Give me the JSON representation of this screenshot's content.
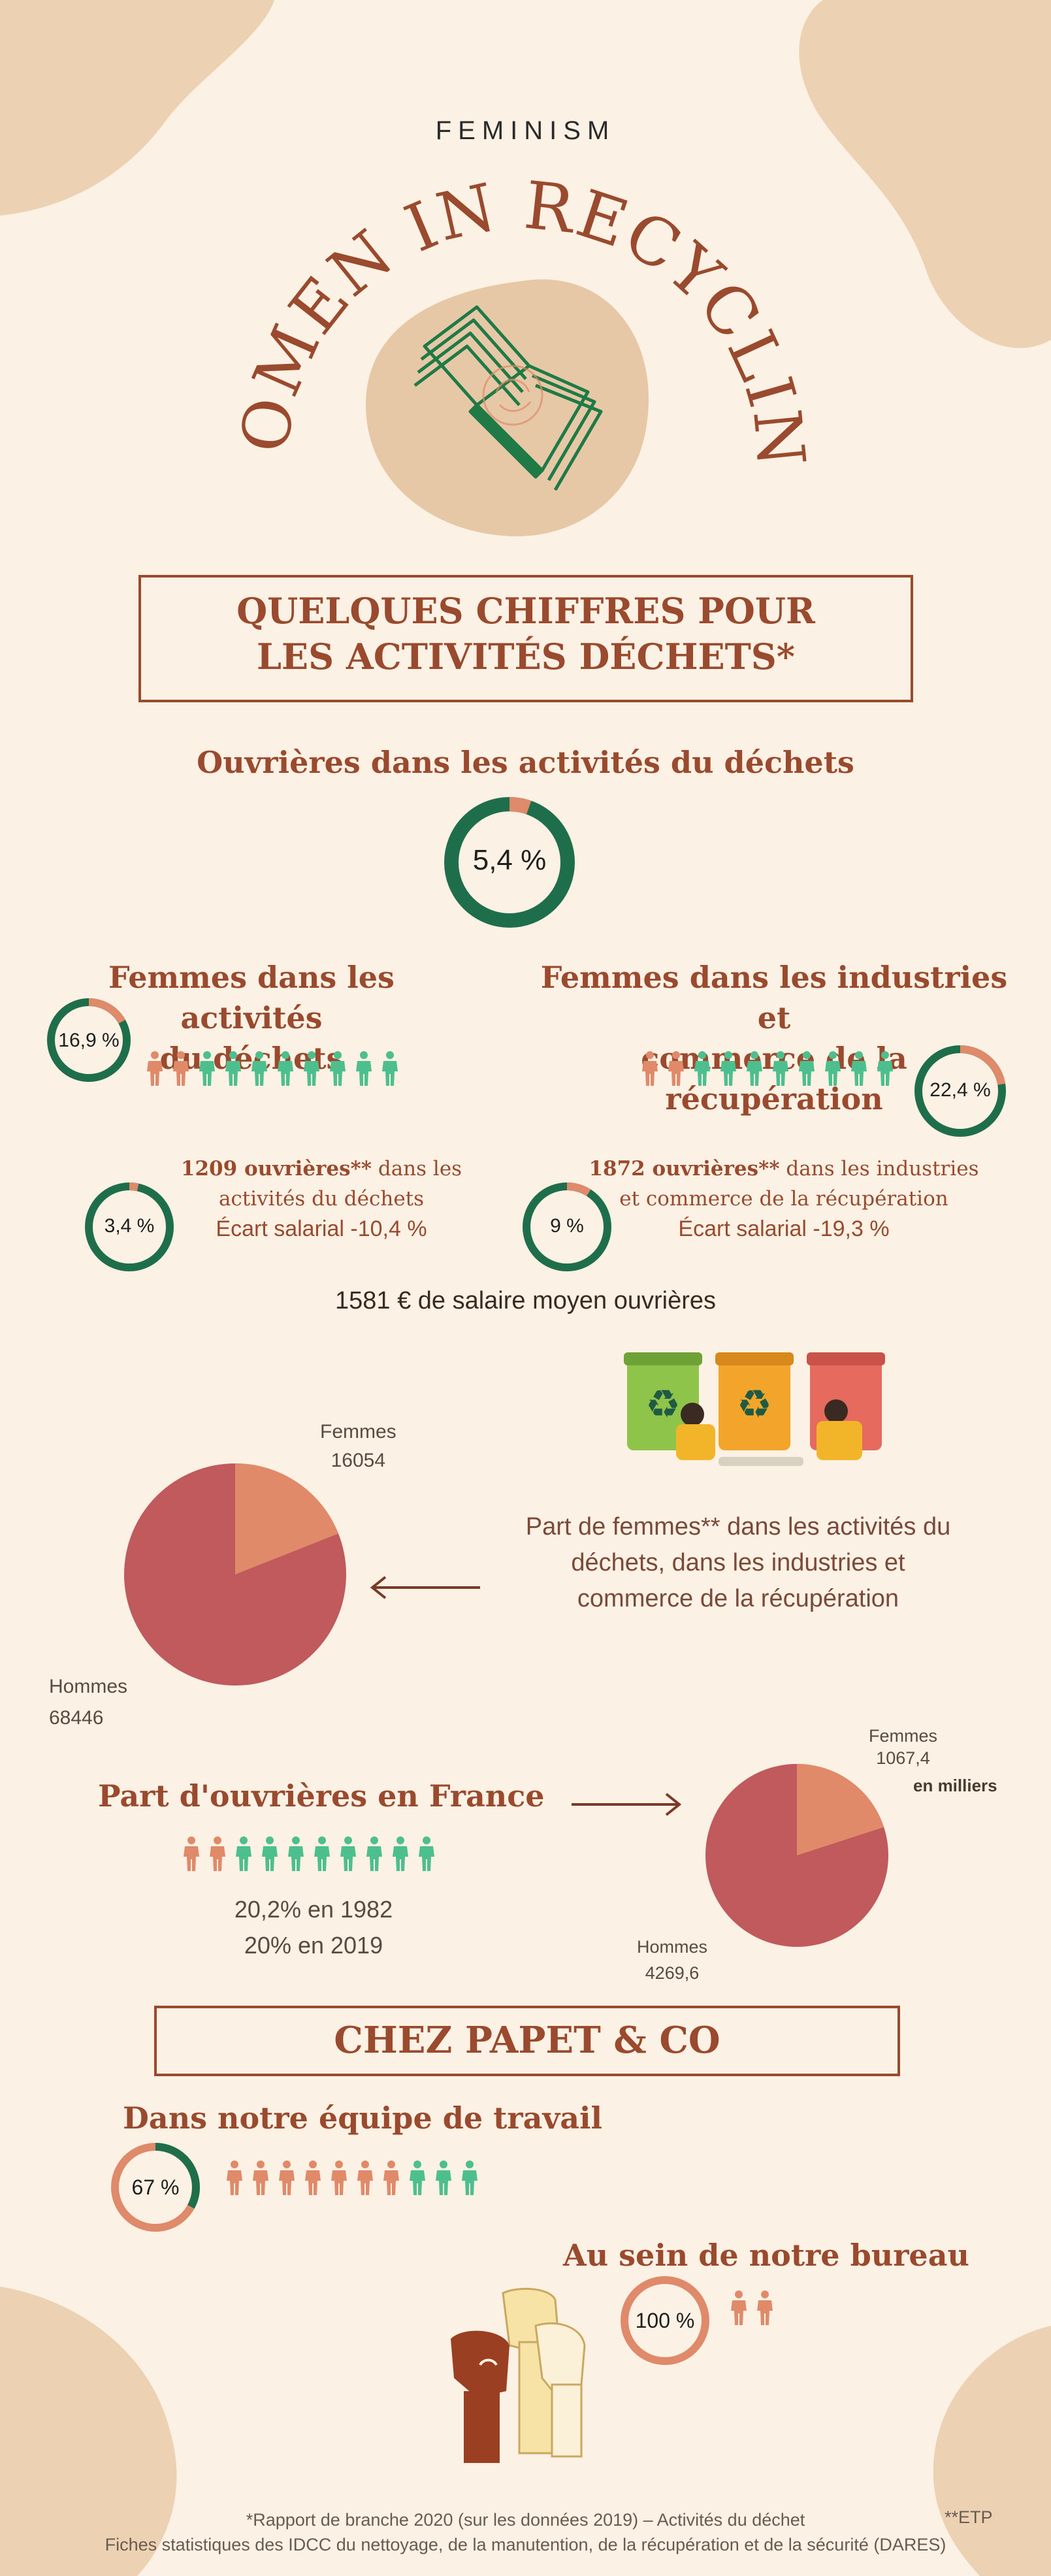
{
  "header": {
    "kicker": "FEMINISM",
    "title_arc": "WOMEN IN RECYCLING"
  },
  "section1": {
    "title_line1": "QUELQUES CHIFFRES POUR",
    "title_line2": "LES ACTIVITÉS DÉCHETS*"
  },
  "stat_main": {
    "label": "Ouvrières dans les activités du déchets",
    "value": "5,4 %",
    "fraction": 0.054
  },
  "stat_left": {
    "label_line1": "Femmes dans les activités",
    "label_line2": "du déchets",
    "value": "16,9 %",
    "fraction": 0.169
  },
  "stat_right": {
    "label_line1": "Femmes dans les industries et",
    "label_line2": "commerce de la récupération",
    "value": "22,4 %",
    "fraction": 0.224
  },
  "detail_left": {
    "value": "3,4 %",
    "fraction": 0.034,
    "count_bold": "1209 ouvrières**",
    "count_rest": " dans les",
    "line2": "activités du déchets",
    "gap": "Écart salarial -10,4 %"
  },
  "detail_right": {
    "value": "9 %",
    "fraction": 0.09,
    "count_bold": "1872 ouvrières**",
    "count_rest": " dans les industries",
    "line2": "et commerce de la récupération",
    "gap": "Écart salarial -19,3 %"
  },
  "salary": "1581 € de salaire moyen ouvrières",
  "pie1": {
    "women_label": "Femmes",
    "women_value": "16054",
    "men_label": "Hommes",
    "men_value": "68446",
    "caption_line1": "Part de femmes** dans les activités du",
    "caption_line2": "déchets, dans les industries et",
    "caption_line3": "commerce de la récupération"
  },
  "france": {
    "title": "Part d'ouvrières en France",
    "line1": "20,2% en 1982",
    "line2": "20% en 2019"
  },
  "pie2": {
    "women_label": "Femmes",
    "women_value": "1067,4",
    "unit": "en milliers",
    "men_label": "Hommes",
    "men_value": "4269,6"
  },
  "section2": {
    "title": "CHEZ PAPET & CO"
  },
  "team": {
    "title": "Dans notre équipe de travail",
    "value": "67 %",
    "fraction": 0.67
  },
  "office": {
    "title": "Au sein de notre bureau",
    "value": "100 %",
    "fraction": 1.0
  },
  "footer": {
    "etp": "**ETP",
    "line1": "*Rapport de branche 2020 (sur les données 2019) – Activités du déchet",
    "line2": "Fiches statistiques des IDCC du nettoyage, de la manutention, de la récupération et de la sécurité (DARES)"
  },
  "colors": {
    "background": "#fbf1e4",
    "blob": "#e9c9a6",
    "rust": "#9a4a2e",
    "green": "#1f6e4b",
    "orange": "#df8a6a",
    "pie_men": "#c05a5c",
    "pie_women": "#e08a6a",
    "figure_orange": "#e08a6a",
    "figure_green": "#4dbf8e"
  },
  "people_rows": {
    "row_left": [
      "orange",
      "orange",
      "green",
      "green",
      "green",
      "green",
      "green",
      "green",
      "green",
      "green"
    ],
    "row_right": [
      "orange",
      "orange",
      "green",
      "green",
      "green",
      "green",
      "green",
      "green",
      "green",
      "green"
    ],
    "row_france": [
      "orange",
      "orange",
      "green",
      "green",
      "green",
      "green",
      "green",
      "green",
      "green",
      "green"
    ],
    "row_team": [
      "orange",
      "orange",
      "orange",
      "orange",
      "orange",
      "orange",
      "orange",
      "green",
      "green",
      "green"
    ],
    "row_office": [
      "orange",
      "orange"
    ]
  }
}
